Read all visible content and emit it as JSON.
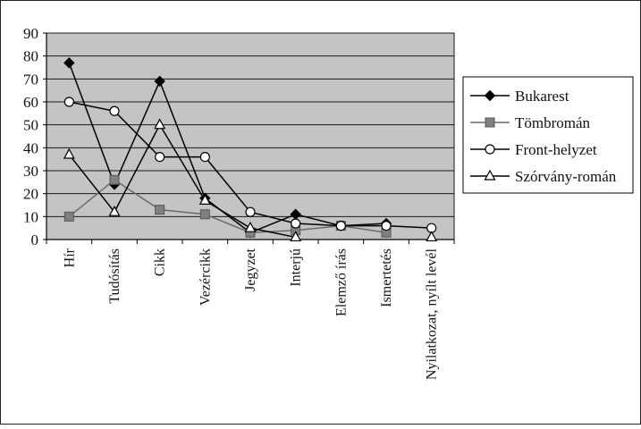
{
  "chart_data": {
    "type": "line",
    "categories": [
      "Hír",
      "Tudósítás",
      "Cikk",
      "Vezércikk",
      "Jegyzet",
      "Interjú",
      "Elemző írás",
      "Ismertetés",
      "Nyilatkozat, nyílt levél"
    ],
    "ylim": [
      0,
      90
    ],
    "yticks": [
      0,
      10,
      20,
      30,
      40,
      50,
      60,
      70,
      80,
      90
    ],
    "grid": true,
    "legend_position": "right",
    "series": [
      {
        "name": "Bukarest",
        "marker": "diamond",
        "color": "#000000",
        "values": [
          77,
          24,
          69,
          18,
          3,
          11,
          6,
          7,
          null
        ]
      },
      {
        "name": "Tömbromán",
        "marker": "square",
        "color": "#808080",
        "values": [
          10,
          26,
          13,
          11,
          3,
          4,
          6,
          3,
          null
        ]
      },
      {
        "name": "Front-helyzet",
        "marker": "circle",
        "color": "#ffffff",
        "values": [
          60,
          56,
          36,
          36,
          12,
          7,
          6,
          6,
          5
        ]
      },
      {
        "name": "Szórvány-román",
        "marker": "triangle",
        "color": "#ffffff",
        "values": [
          37,
          12,
          50,
          17,
          5,
          1,
          null,
          null,
          1
        ]
      }
    ]
  }
}
